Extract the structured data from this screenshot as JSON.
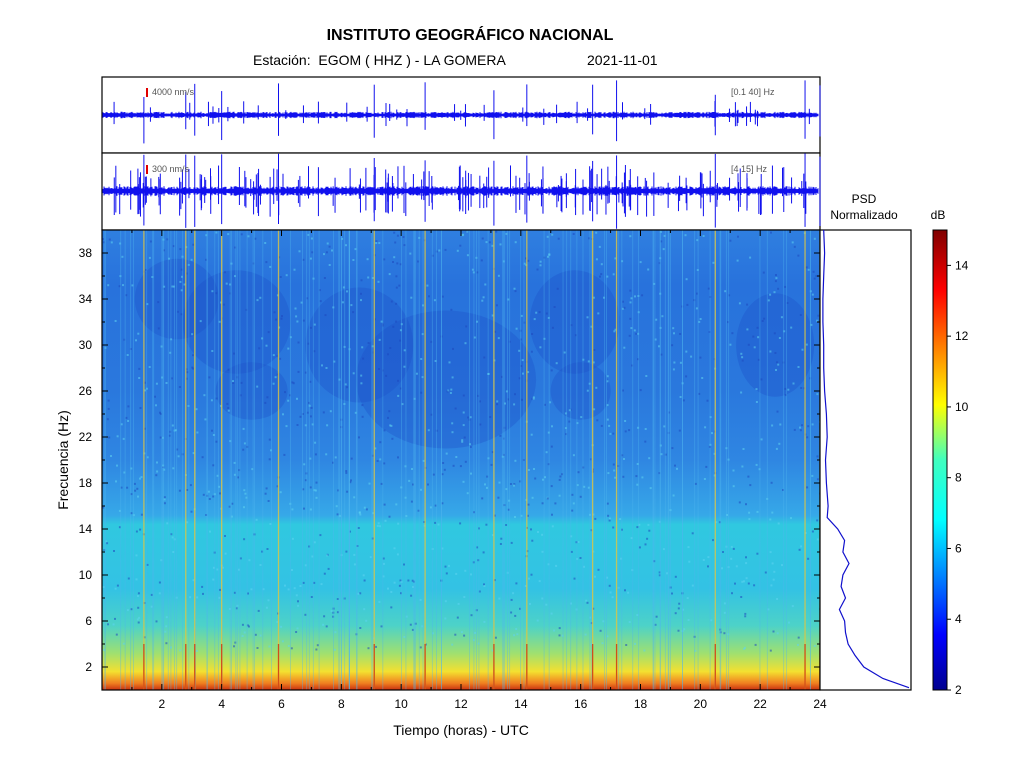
{
  "header": {
    "title": "INSTITUTO GEOGRÁFICO NACIONAL",
    "station": "Estación:  EGOM ( HHZ ) - LA GOMERA",
    "date": "2021-11-01"
  },
  "traces": [
    {
      "scale_label": "4000 nm/s",
      "band_label": "[0.1 40] Hz",
      "color": "#1010ee",
      "marker_color": "#e00000"
    },
    {
      "scale_label": "300 nm/s",
      "band_label": "[4 15] Hz",
      "color": "#1010ee",
      "marker_color": "#e00000"
    }
  ],
  "psd": {
    "title_line1": "PSD",
    "title_line2": "Normalizado",
    "color": "#1010cc"
  },
  "colorbar": {
    "unit": "dB",
    "ticks": [
      2,
      4,
      6,
      8,
      10,
      12,
      14
    ],
    "range": [
      2,
      15
    ]
  },
  "chart_data": {
    "type": "heatmap",
    "title": "INSTITUTO GEOGRÁFICO NACIONAL",
    "xlabel": "Tiempo (horas) - UTC",
    "ylabel": "Frecuencia (Hz)",
    "xlim": [
      0,
      24
    ],
    "ylim": [
      0,
      40
    ],
    "x_ticks": [
      2,
      4,
      6,
      8,
      10,
      12,
      14,
      16,
      18,
      20,
      22,
      24
    ],
    "y_ticks": [
      2,
      6,
      10,
      14,
      18,
      22,
      26,
      30,
      34,
      38
    ],
    "color_scale": "jet",
    "zlabel": "dB",
    "zlim": [
      2,
      15
    ],
    "event_times_hours": [
      1.4,
      2.8,
      3.1,
      4.0,
      5.9,
      9.1,
      10.8,
      13.1,
      14.2,
      16.4,
      17.2,
      20.5,
      23.5,
      24.0
    ],
    "psd_profile": [
      {
        "f": 0.2,
        "v": 1.0
      },
      {
        "f": 1,
        "v": 0.7
      },
      {
        "f": 2,
        "v": 0.48
      },
      {
        "f": 3,
        "v": 0.38
      },
      {
        "f": 4,
        "v": 0.3
      },
      {
        "f": 5,
        "v": 0.27
      },
      {
        "f": 6,
        "v": 0.26
      },
      {
        "f": 7,
        "v": 0.2
      },
      {
        "f": 8,
        "v": 0.27
      },
      {
        "f": 9,
        "v": 0.22
      },
      {
        "f": 10,
        "v": 0.24
      },
      {
        "f": 11,
        "v": 0.31
      },
      {
        "f": 12,
        "v": 0.24
      },
      {
        "f": 13,
        "v": 0.26
      },
      {
        "f": 14,
        "v": 0.18
      },
      {
        "f": 15,
        "v": 0.06
      },
      {
        "f": 16,
        "v": 0.07
      },
      {
        "f": 18,
        "v": 0.05
      },
      {
        "f": 20,
        "v": 0.04
      },
      {
        "f": 22,
        "v": 0.06
      },
      {
        "f": 24,
        "v": 0.05
      },
      {
        "f": 26,
        "v": 0.03
      },
      {
        "f": 28,
        "v": 0.02
      },
      {
        "f": 30,
        "v": 0.02
      },
      {
        "f": 32,
        "v": 0.01
      },
      {
        "f": 34,
        "v": 0.01
      },
      {
        "f": 36,
        "v": 0.02
      },
      {
        "f": 38,
        "v": 0.03
      },
      {
        "f": 40,
        "v": 0.02
      }
    ]
  }
}
